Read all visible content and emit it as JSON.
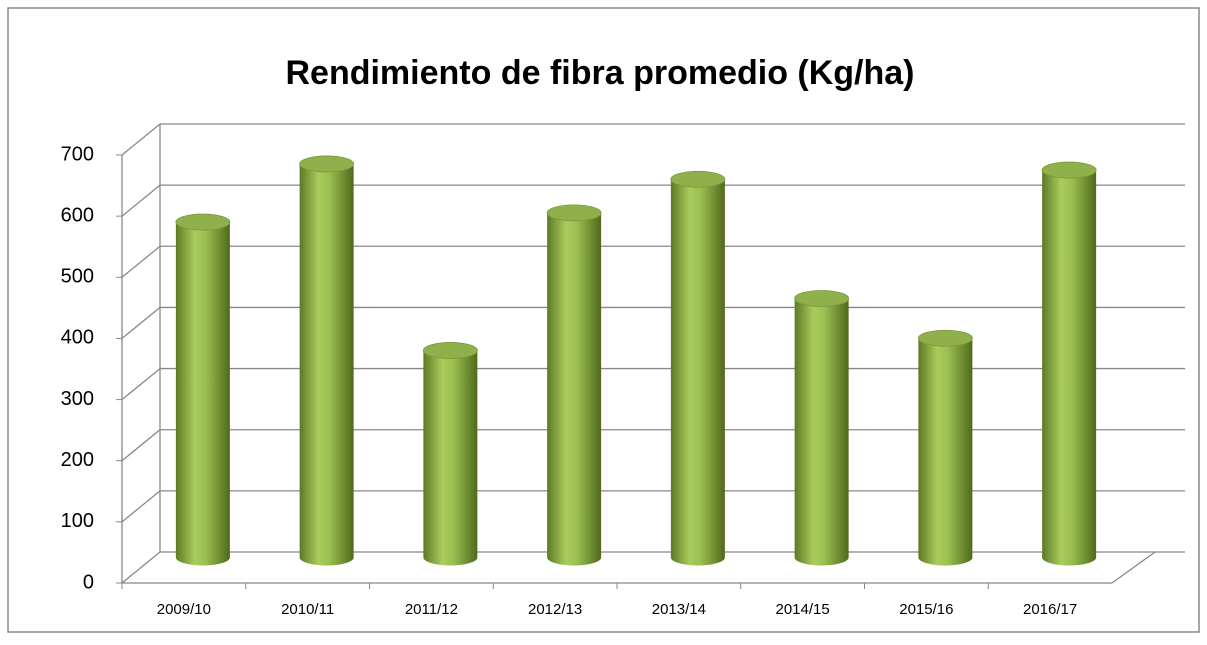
{
  "chart_data": {
    "type": "bar",
    "title": "Rendimiento de fibra promedio (Kg/ha)",
    "categories": [
      "2009/10",
      "2010/11",
      "2011/12",
      "2012/13",
      "2013/14",
      "2014/15",
      "2015/16",
      "2016/17"
    ],
    "values": [
      565,
      660,
      355,
      580,
      635,
      440,
      375,
      650
    ],
    "color": "#9bbb59",
    "ylim": [
      0,
      700
    ],
    "yticks": [
      0,
      100,
      200,
      300,
      400,
      500,
      600,
      700
    ],
    "grid": true
  }
}
